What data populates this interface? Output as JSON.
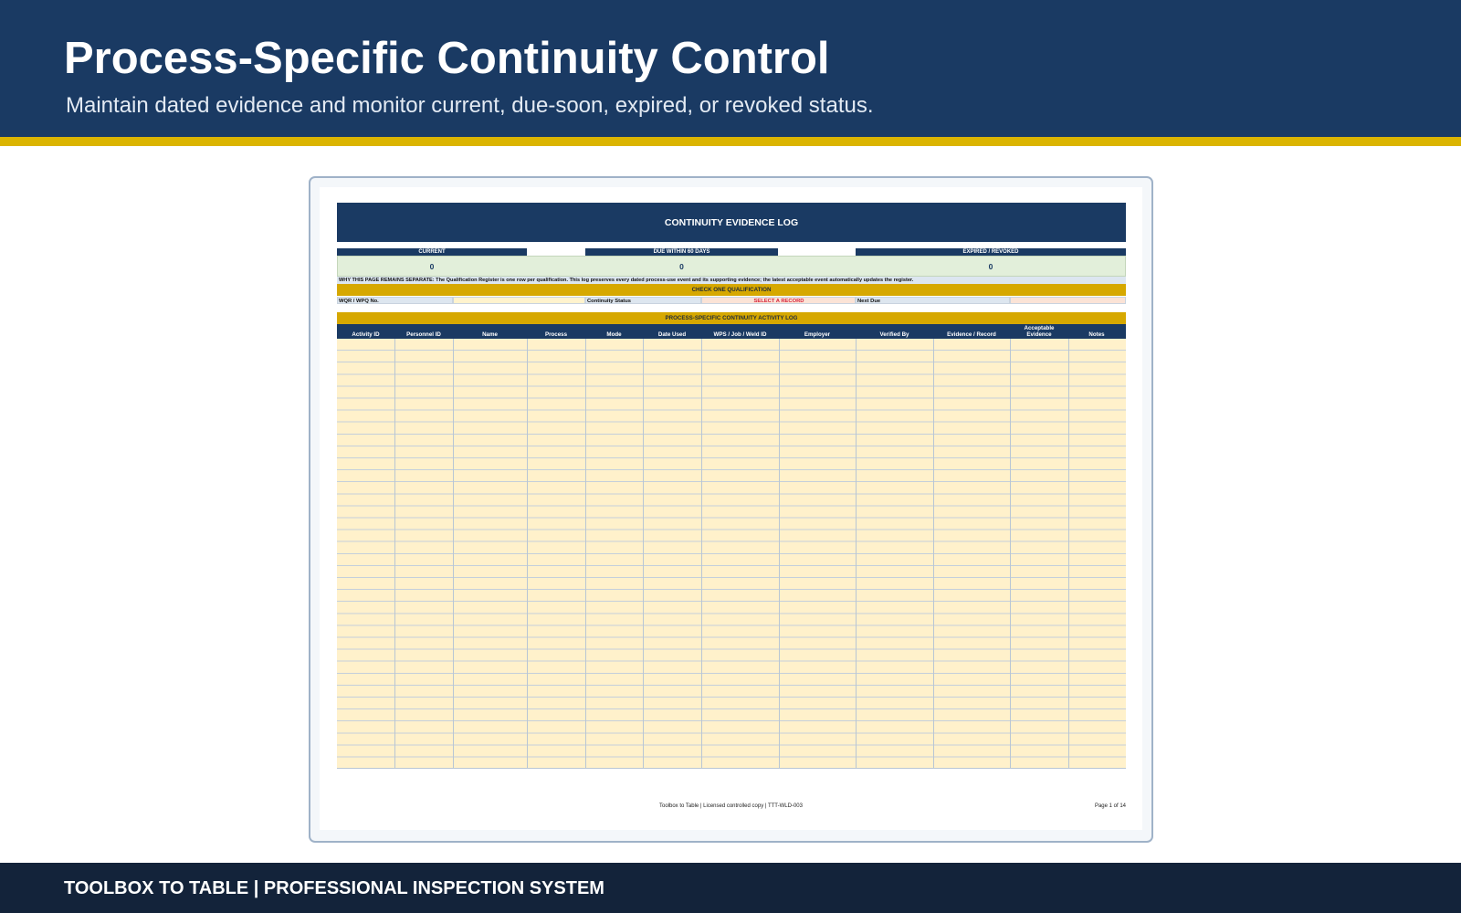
{
  "header": {
    "title": "Process-Specific Continuity Control",
    "subtitle": "Maintain dated evidence and monitor current, due-soon, expired, or revoked status."
  },
  "sheet": {
    "banner": "CONTINUITY EVIDENCE LOG",
    "kpis": [
      {
        "label": "CURRENT",
        "value": "0"
      },
      {
        "label": "DUE WITHIN 60 DAYS",
        "value": "0"
      },
      {
        "label": "EXPIRED / REVOKED",
        "value": "0"
      }
    ],
    "why_note": "WHY THIS PAGE REMAINS SEPARATE: The Qualification Register is one row per qualification. This log preserves every dated process-use event and its supporting evidence; the latest acceptable event automatically updates the register.",
    "check_heading": "CHECK ONE QUALIFICATION",
    "lookup": {
      "wqr_label": "WQR / WPQ No.",
      "wqr_value": "",
      "status_label": "Continuity Status",
      "status_value": "SELECT A RECORD",
      "next_due_label": "Next Due",
      "next_due_value": ""
    },
    "log_heading": "PROCESS-SPECIFIC CONTINUITY ACTIVITY LOG",
    "columns": [
      "Activity ID",
      "Personnel ID",
      "Name",
      "Process",
      "Mode",
      "Date Used",
      "WPS / Job / Weld ID",
      "Employer",
      "Verified By",
      "Evidence / Record",
      "Acceptable Evidence",
      "Notes"
    ],
    "footer_center": "Toolbox to Table | Licensed controlled copy | TTT-WLD-003",
    "footer_page": "Page 1 of 14"
  },
  "footer": {
    "text": "TOOLBOX TO TABLE  |  PROFESSIONAL INSPECTION SYSTEM"
  },
  "colors": {
    "navy": "#1a3a63",
    "gold": "#dbb400",
    "input_fill": "#fff1cb",
    "kpi_fill": "#e2efda",
    "status_red": "#d7263d"
  }
}
